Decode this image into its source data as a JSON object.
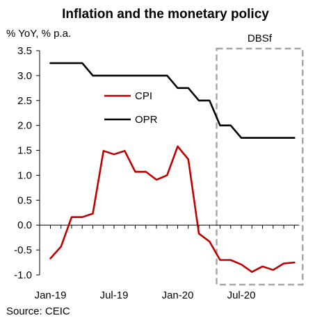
{
  "chart_data": {
    "type": "line",
    "title": "Inflation and the monetary policy",
    "ylabel": "% YoY, % p.a.",
    "xlabel": "",
    "ylim": [
      -1.0,
      3.5
    ],
    "yticks": [
      "3.5",
      "3.0",
      "2.5",
      "2.0",
      "1.5",
      "1.0",
      "0.5",
      "0.0",
      "-0.5",
      "-1.0"
    ],
    "ytick_values": [
      3.5,
      3.0,
      2.5,
      2.0,
      1.5,
      1.0,
      0.5,
      0.0,
      -0.5,
      -1.0
    ],
    "x": [
      "2019-01",
      "2019-02",
      "2019-03",
      "2019-04",
      "2019-05",
      "2019-06",
      "2019-07",
      "2019-08",
      "2019-09",
      "2019-10",
      "2019-11",
      "2019-12",
      "2020-01",
      "2020-02",
      "2020-03",
      "2020-04",
      "2020-05",
      "2020-06",
      "2020-07",
      "2020-08",
      "2020-09",
      "2020-10",
      "2020-11",
      "2020-12"
    ],
    "xtick_labels": [
      "Jan-19",
      "Jul-19",
      "Jan-20",
      "Jul-20"
    ],
    "xtick_index": [
      0,
      6,
      12,
      18
    ],
    "series": [
      {
        "name": "CPI",
        "color": "#c00000",
        "values": [
          -0.67,
          -0.43,
          0.16,
          0.16,
          0.23,
          1.49,
          1.42,
          1.49,
          1.07,
          1.07,
          0.91,
          1.0,
          1.58,
          1.32,
          -0.17,
          -0.33,
          -0.7,
          -0.7,
          -0.79,
          -0.94,
          -0.83,
          -0.9,
          -0.77,
          -0.75
        ]
      },
      {
        "name": "OPR",
        "color": "#000000",
        "values": [
          3.25,
          3.25,
          3.25,
          3.25,
          3.0,
          3.0,
          3.0,
          3.0,
          3.0,
          3.0,
          3.0,
          3.0,
          2.75,
          2.75,
          2.5,
          2.5,
          2.0,
          2.0,
          1.75,
          1.75,
          1.75,
          1.75,
          1.75,
          1.75
        ]
      }
    ],
    "annotations": [
      {
        "text": "DBSf",
        "style": "dashed-box",
        "color": "#a6a6a6",
        "x_from": "2020-05",
        "x_to": "2020-12"
      }
    ],
    "grid": false,
    "legend": "center"
  },
  "footer": {
    "source": "Source: CEIC"
  }
}
